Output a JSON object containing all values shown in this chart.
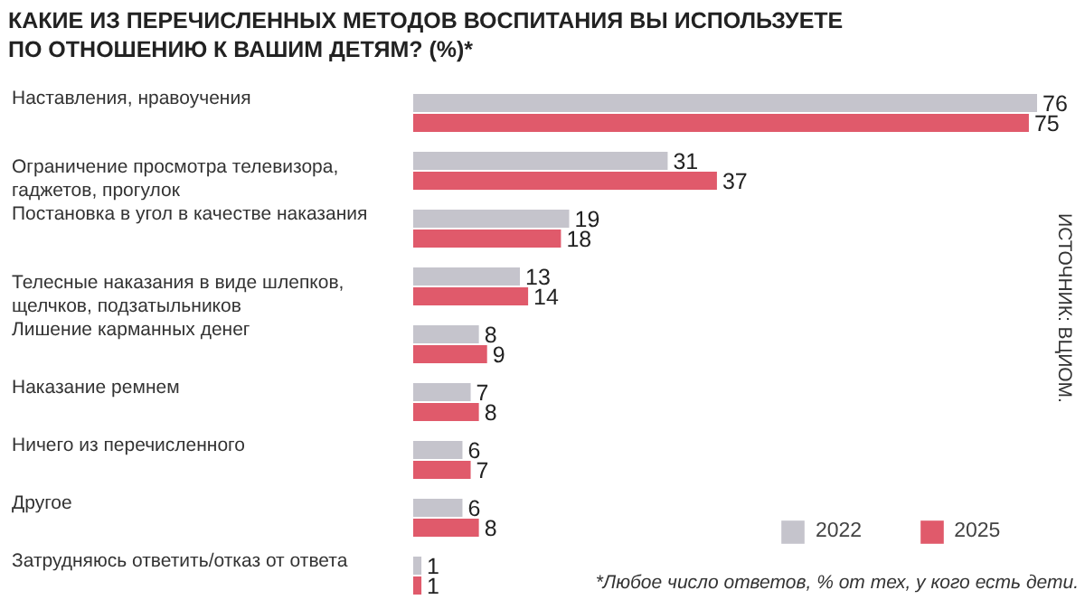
{
  "chart_data": {
    "type": "bar",
    "orientation": "horizontal",
    "title": "КАКИЕ ИЗ ПЕРЕЧИСЛЕННЫХ МЕТОДОВ ВОСПИТАНИЯ ВЫ ИСПОЛЬЗУЕТЕ\nПО ОТНОШЕНИЮ К ВАШИМ ДЕТЯМ? (%)*",
    "categories": [
      "Наставления, нравоучения",
      "Ограничение просмотра телевизора,\nгаджетов, прогулок",
      "Постановка в угол в качестве наказания",
      "Телесные наказания в виде шлепков,\nщелчков, подзатыльников",
      "Лишение карманных денег",
      "Наказание ремнем",
      "Ничего из перечисленного",
      "Другое",
      "Затрудняюсь ответить/отказ от ответа"
    ],
    "series": [
      {
        "name": "2022",
        "color": "#c5c4cc",
        "values": [
          76,
          31,
          19,
          13,
          8,
          7,
          6,
          6,
          1
        ]
      },
      {
        "name": "2025",
        "color": "#e05a6b",
        "values": [
          75,
          37,
          18,
          14,
          9,
          8,
          7,
          8,
          1
        ]
      }
    ],
    "data_labels": true,
    "legend": "bottom right",
    "grid": false,
    "annotations": [
      "ИСТОЧНИК: ВЦИОМ.",
      "*Любое число ответов, % от тех, у кого есть дети."
    ]
  }
}
